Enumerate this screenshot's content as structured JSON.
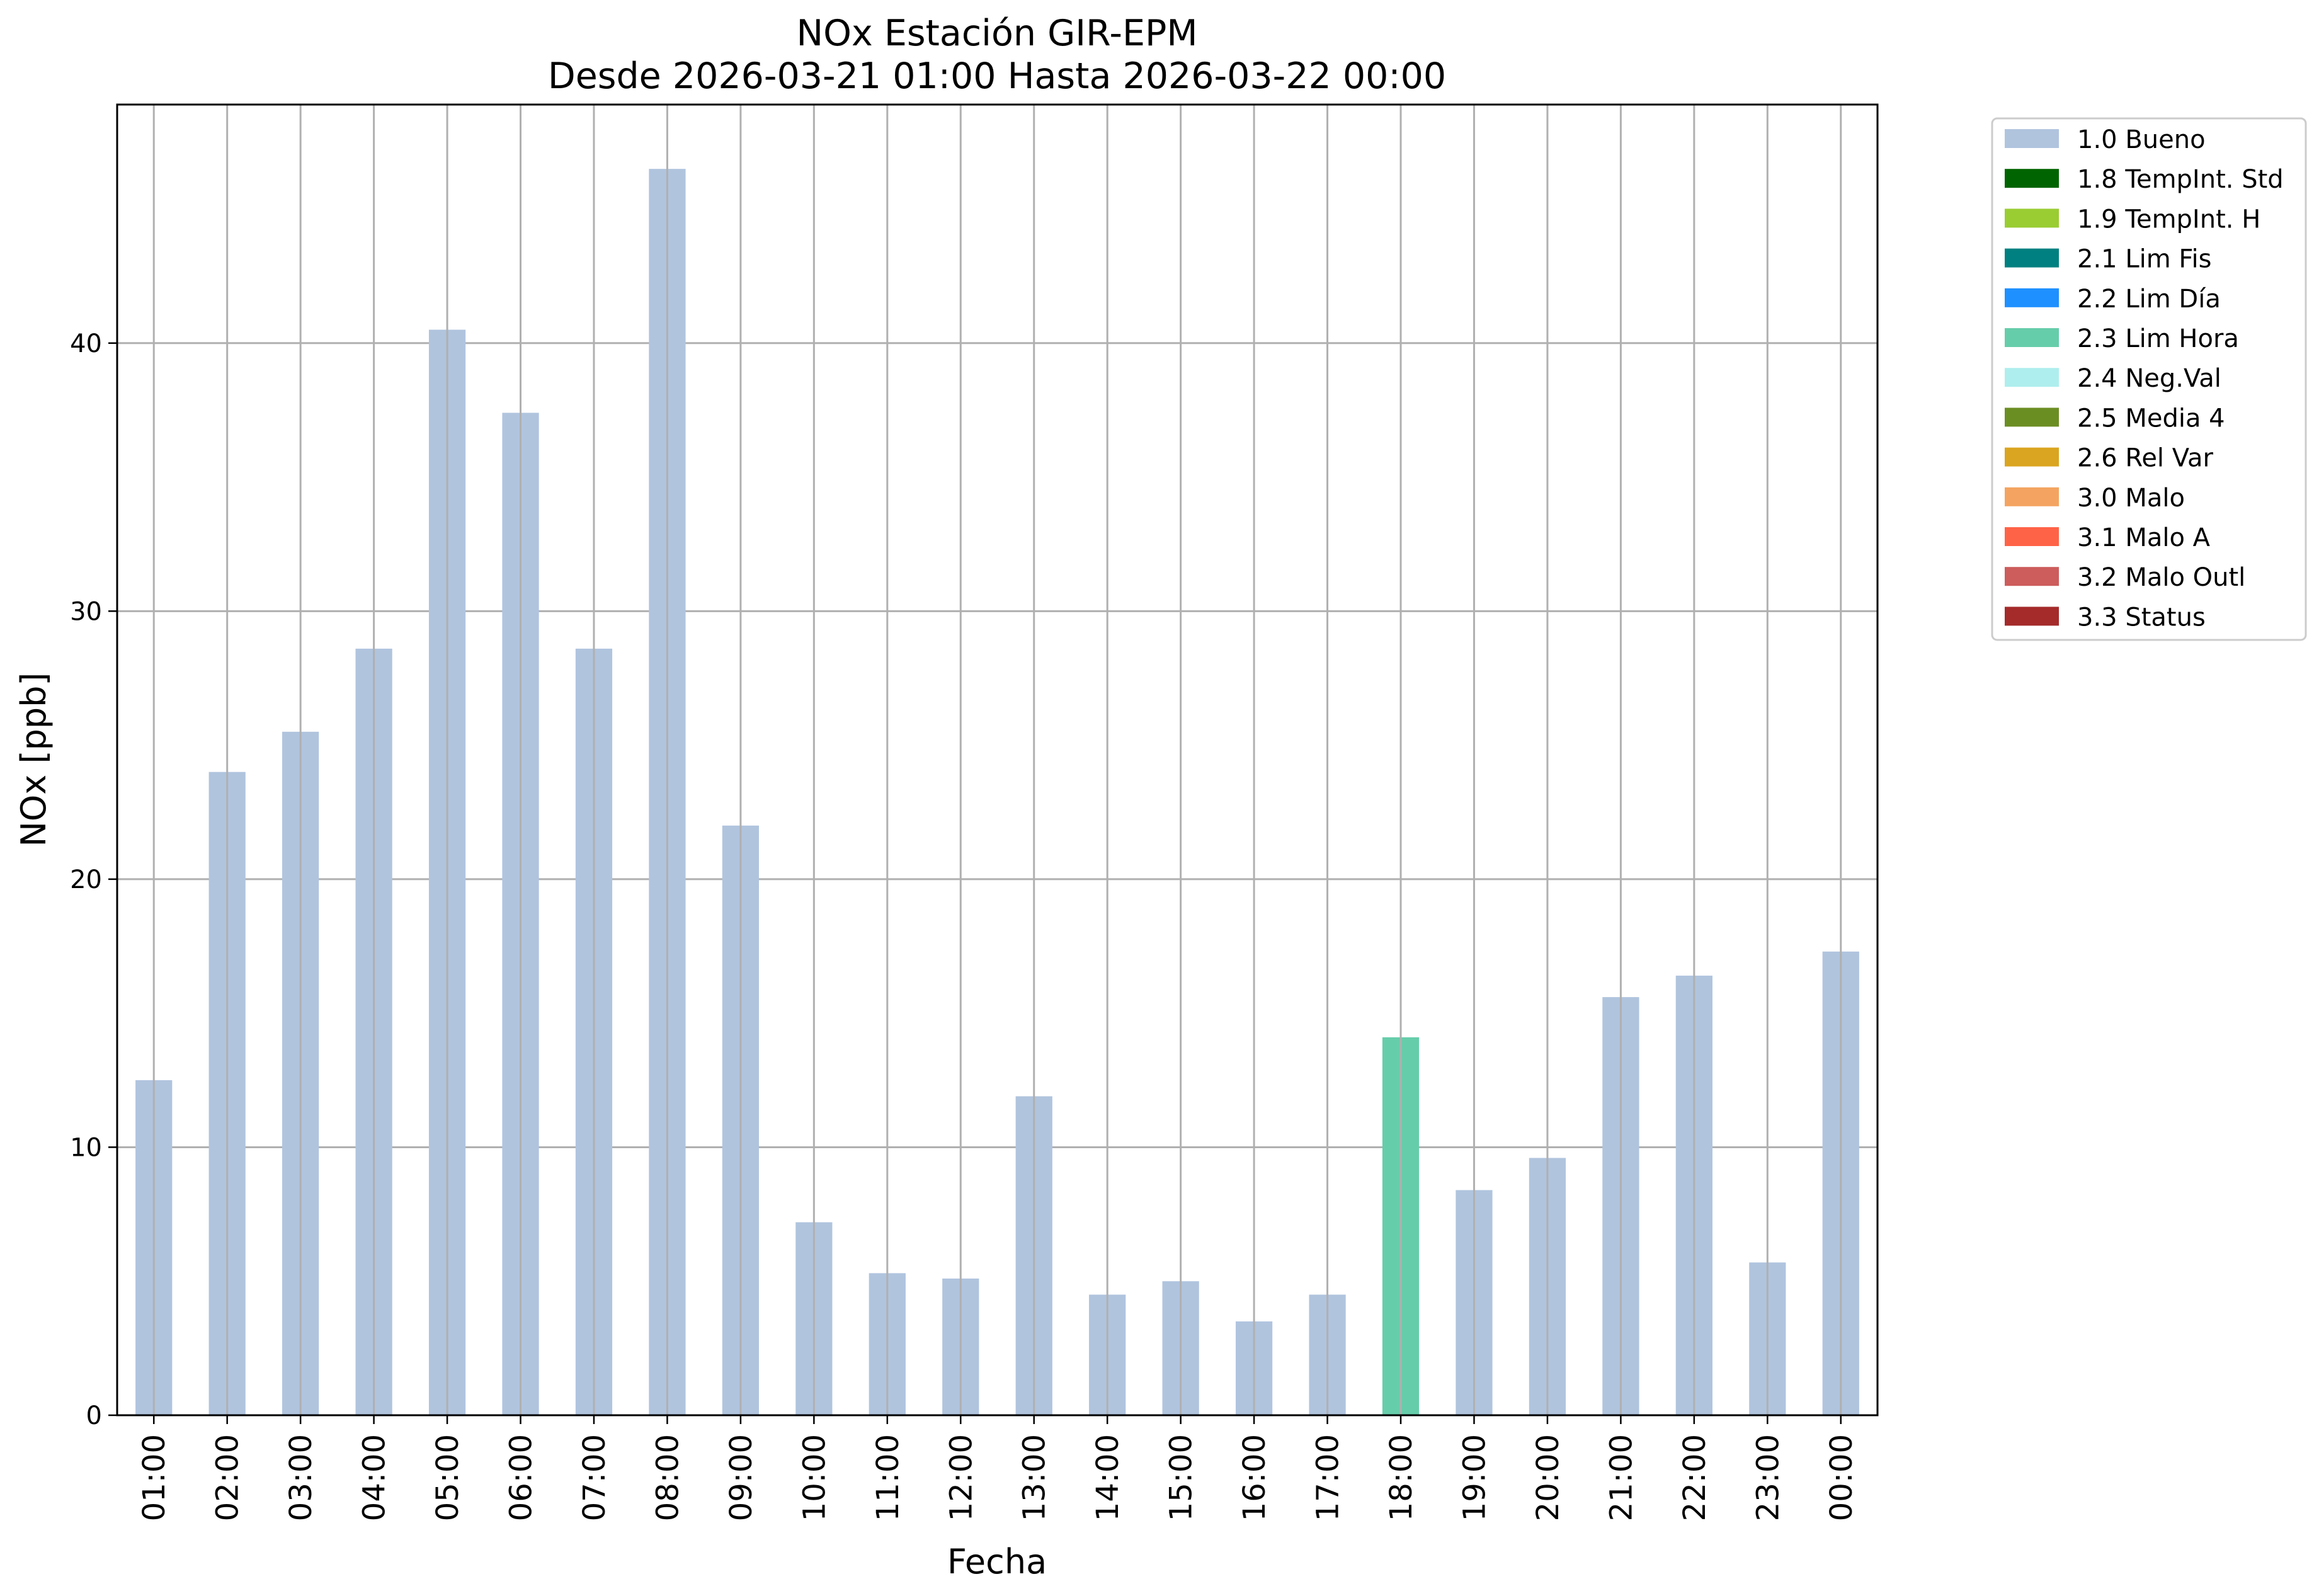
{
  "chart_data": {
    "type": "bar",
    "title": "NOx Estación GIR-EPM",
    "subtitle": "Desde 2026-03-21 01:00 Hasta 2026-03-22 00:00",
    "xlabel": "Fecha",
    "ylabel": "NOx [ppb]",
    "ylim": [
      0,
      48.9
    ],
    "yticks": [
      0,
      10,
      20,
      30,
      40
    ],
    "grid": true,
    "legend_placement": "outside-top-right",
    "categories": [
      "01:00",
      "02:00",
      "03:00",
      "04:00",
      "05:00",
      "06:00",
      "07:00",
      "08:00",
      "09:00",
      "10:00",
      "11:00",
      "12:00",
      "13:00",
      "14:00",
      "15:00",
      "16:00",
      "17:00",
      "18:00",
      "19:00",
      "20:00",
      "21:00",
      "22:00",
      "23:00",
      "00:00"
    ],
    "values": [
      12.5,
      24.0,
      25.5,
      28.6,
      40.5,
      37.4,
      28.6,
      46.5,
      22.0,
      7.2,
      5.3,
      5.1,
      11.9,
      4.5,
      5.0,
      3.5,
      4.5,
      14.1,
      8.4,
      9.6,
      15.6,
      16.4,
      5.7,
      17.3
    ],
    "flags": [
      "1.0 Bueno",
      "1.0 Bueno",
      "1.0 Bueno",
      "1.0 Bueno",
      "1.0 Bueno",
      "1.0 Bueno",
      "1.0 Bueno",
      "1.0 Bueno",
      "1.0 Bueno",
      "1.0 Bueno",
      "1.0 Bueno",
      "1.0 Bueno",
      "1.0 Bueno",
      "1.0 Bueno",
      "1.0 Bueno",
      "1.0 Bueno",
      "1.0 Bueno",
      "2.3 Lim Hora",
      "1.0 Bueno",
      "1.0 Bueno",
      "1.0 Bueno",
      "1.0 Bueno",
      "1.0 Bueno",
      "1.0 Bueno"
    ],
    "legend": [
      {
        "label": "1.0 Bueno",
        "color": "#b0c4de"
      },
      {
        "label": "1.8 TempInt. Std",
        "color": "#006400"
      },
      {
        "label": "1.9 TempInt. H",
        "color": "#9acd32"
      },
      {
        "label": "2.1 Lim Fis",
        "color": "#008080"
      },
      {
        "label": "2.2 Lim Día",
        "color": "#1e90ff"
      },
      {
        "label": "2.3 Lim Hora",
        "color": "#66cdaa"
      },
      {
        "label": "2.4 Neg.Val",
        "color": "#afeeee"
      },
      {
        "label": "2.5 Media 4",
        "color": "#6b8e23"
      },
      {
        "label": "2.6 Rel Var",
        "color": "#daa520"
      },
      {
        "label": "3.0 Malo",
        "color": "#f4a460"
      },
      {
        "label": "3.1 Malo A",
        "color": "#ff6347"
      },
      {
        "label": "3.2 Malo Outl",
        "color": "#cd5c5c"
      },
      {
        "label": "3.3 Status",
        "color": "#a52a2a"
      }
    ]
  }
}
